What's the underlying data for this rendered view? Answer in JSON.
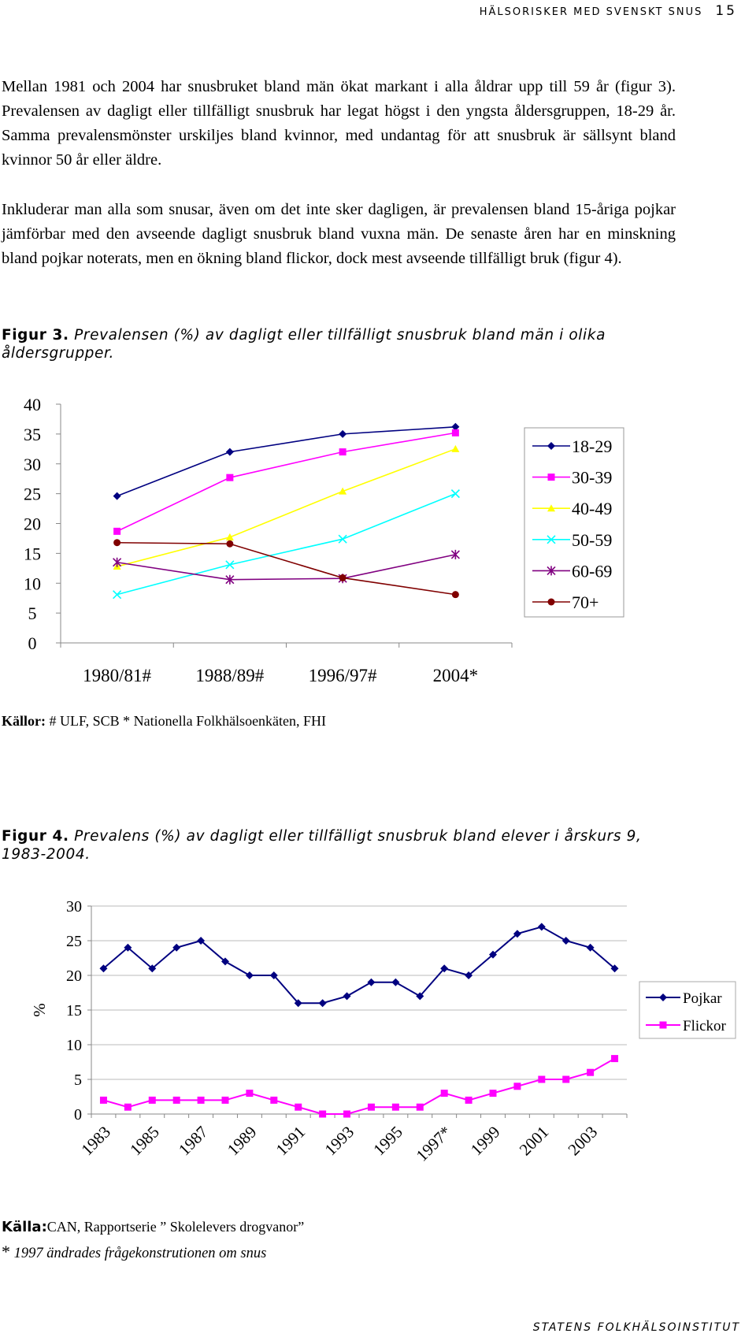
{
  "header": {
    "title": "HÄLSORISKER MED SVENSKT SNUS",
    "page_number": "15"
  },
  "paragraphs": [
    "Mellan 1981 och 2004 har snusbruket bland män ökat markant i alla åldrar upp till 59 år (figur 3). Prevalensen av dagligt eller tillfälligt snusbruk har legat högst i den yngsta åldersgruppen, 18-29 år. Samma prevalensmönster urskiljes bland kvinnor, med undantag för att snusbruk är sällsynt bland kvinnor 50 år eller äldre.",
    "Inkluderar man alla som snusar, även om det inte sker dagligen, är prevalensen bland 15-åriga pojkar jämförbar med den avseende dagligt snusbruk bland vuxna män. De senaste åren har en minskning bland pojkar noterats, men en ökning bland flickor, dock mest avseende tillfälligt bruk (figur 4)."
  ],
  "figure3": {
    "caption_label": "Figur 3.",
    "caption_text": "Prevalensen (%) av dagligt eller tillfälligt snusbruk bland män i olika åldersgrupper.",
    "source_label": "Källor:",
    "source_text": "# ULF, SCB * Nationella Folkhälsoenkäten, FHI"
  },
  "figure4": {
    "caption_label": "Figur 4.",
    "caption_text": "Prevalens (%) av dagligt eller tillfälligt snusbruk bland elever i årskurs 9, 1983-2004.",
    "source_label": "Källa:",
    "source_text": "CAN, Rapportserie ” Skolelevers drogvanor”",
    "footnote_star": "*",
    "footnote_text": "1997 ändrades frågekonstrutionen om snus"
  },
  "footer": {
    "text": "STATENS FOLKHÄLSOINSTITUT"
  },
  "chart_data": [
    {
      "type": "line",
      "title": "",
      "xlabel": "",
      "ylabel": "",
      "ylim": [
        0,
        40
      ],
      "yticks": [
        0,
        5,
        10,
        15,
        20,
        25,
        30,
        35,
        40
      ],
      "grid": false,
      "legend_position": "right",
      "categories": [
        "1980/81#",
        "1988/89#",
        "1996/97#",
        "2004*"
      ],
      "series": [
        {
          "name": "18-29",
          "color": "#000080",
          "marker": "diamond",
          "values": [
            24.6,
            32.0,
            35.0,
            36.2
          ]
        },
        {
          "name": "30-39",
          "color": "#FF00FF",
          "marker": "square",
          "values": [
            18.7,
            27.7,
            32.0,
            35.2
          ]
        },
        {
          "name": "40-49",
          "color": "#FFFF00",
          "marker": "triangle",
          "values": [
            12.8,
            17.7,
            25.4,
            32.5
          ]
        },
        {
          "name": "50-59",
          "color": "#00FFFF",
          "marker": "x",
          "values": [
            8.1,
            13.1,
            17.4,
            25.0
          ]
        },
        {
          "name": "60-69",
          "color": "#800080",
          "marker": "star",
          "values": [
            13.5,
            10.6,
            10.8,
            14.8
          ]
        },
        {
          "name": "70+",
          "color": "#800000",
          "marker": "circle",
          "values": [
            16.8,
            16.6,
            10.9,
            8.1
          ]
        }
      ]
    },
    {
      "type": "line",
      "title": "",
      "xlabel": "",
      "ylabel": "%",
      "ylim": [
        0,
        30
      ],
      "yticks": [
        0,
        5,
        10,
        15,
        20,
        25,
        30
      ],
      "grid": true,
      "legend_position": "right",
      "x": [
        1983,
        1984,
        1985,
        1986,
        1987,
        1988,
        1989,
        1990,
        1991,
        1992,
        1993,
        1994,
        1995,
        1996,
        1997,
        1998,
        1999,
        2000,
        2001,
        2002,
        2003,
        2004
      ],
      "tick_labels": [
        "1983",
        "1985",
        "1987",
        "1989",
        "1991",
        "1993",
        "1995",
        "1997*",
        "1999",
        "2001",
        "2003"
      ],
      "series": [
        {
          "name": "Pojkar",
          "color": "#000080",
          "marker": "diamond",
          "values": [
            21,
            24,
            21,
            24,
            25,
            22,
            20,
            20,
            16,
            16,
            17,
            19,
            19,
            17,
            21,
            20,
            23,
            26,
            27,
            25,
            24,
            21
          ]
        },
        {
          "name": "Flickor",
          "color": "#FF00FF",
          "marker": "square",
          "values": [
            2,
            1,
            2,
            2,
            2,
            2,
            3,
            2,
            1,
            0,
            0,
            1,
            1,
            1,
            3,
            2,
            3,
            4,
            5,
            5,
            6,
            8
          ]
        }
      ]
    }
  ]
}
